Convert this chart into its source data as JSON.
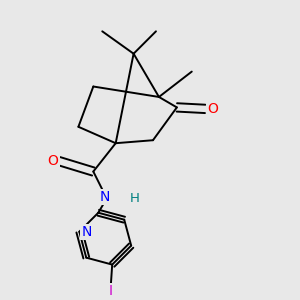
{
  "bg_color": "#e8e8e8",
  "atom_colors": {
    "O": "#ff0000",
    "N": "#0000ff",
    "H": "#008080",
    "I": "#cc00cc",
    "C": "#000000"
  },
  "bond_color": "#000000",
  "bond_width": 1.4
}
